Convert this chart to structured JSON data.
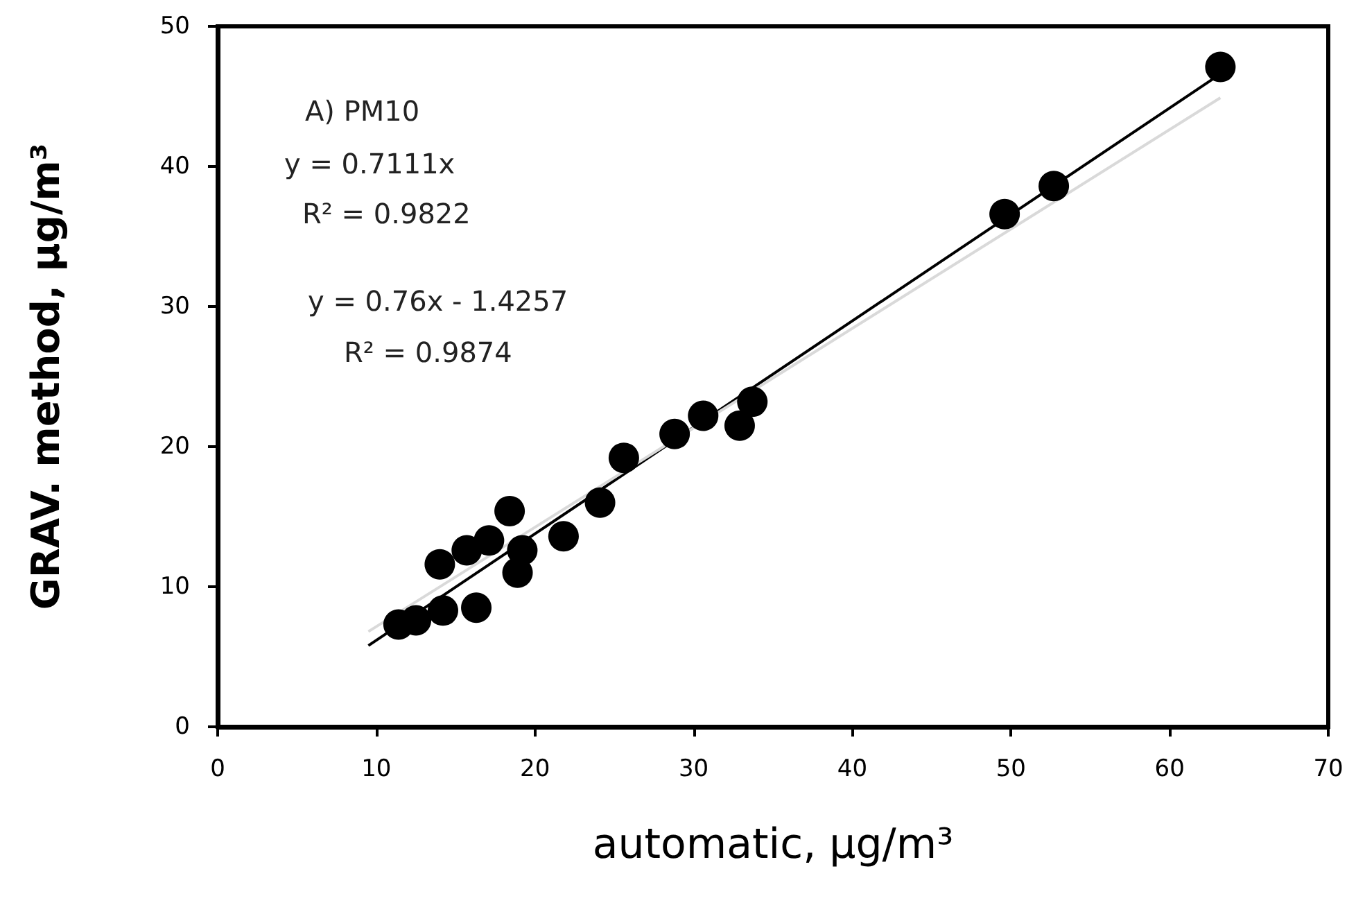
{
  "chart_data": {
    "type": "scatter",
    "xlabel": "automatic, µg/m³",
    "ylabel": "GRAV. method, µg/m³",
    "annotations": [
      "A) PM10",
      "y = 0.7111x",
      "R² = 0.9822",
      "y = 0.76x - 1.4257",
      "R² = 0.9874"
    ],
    "series": [
      {
        "color": "#000000",
        "marker": "circle",
        "x": [
          11.4,
          12.5,
          14.2,
          16.3,
          14.0,
          15.7,
          17.1,
          18.9,
          19.2,
          18.4,
          21.8,
          24.1,
          25.6,
          28.8,
          30.6,
          32.9,
          33.7,
          49.6,
          52.7,
          63.2
        ],
        "values": [
          7.3,
          7.6,
          8.3,
          8.5,
          11.6,
          12.6,
          13.3,
          11.0,
          12.6,
          15.4,
          13.6,
          16.0,
          19.2,
          20.9,
          22.2,
          21.5,
          23.2,
          36.6,
          38.6,
          47.1
        ]
      },
      {
        "type": "line",
        "color": "#000000",
        "marker": "none",
        "x": [
          9.5,
          63.2
        ],
        "values": [
          5.8,
          46.6
        ]
      },
      {
        "type": "line",
        "color": "#d9d9d9",
        "marker": "none",
        "x": [
          9.5,
          63.2
        ],
        "values": [
          6.8,
          44.9
        ]
      }
    ],
    "xlim": [
      0,
      70
    ],
    "xticks": [
      0,
      10,
      20,
      30,
      40,
      50,
      60,
      70
    ],
    "ylim": [
      0,
      50
    ],
    "yticks": [
      0,
      10,
      20,
      30,
      40,
      50
    ],
    "grid": false
  }
}
